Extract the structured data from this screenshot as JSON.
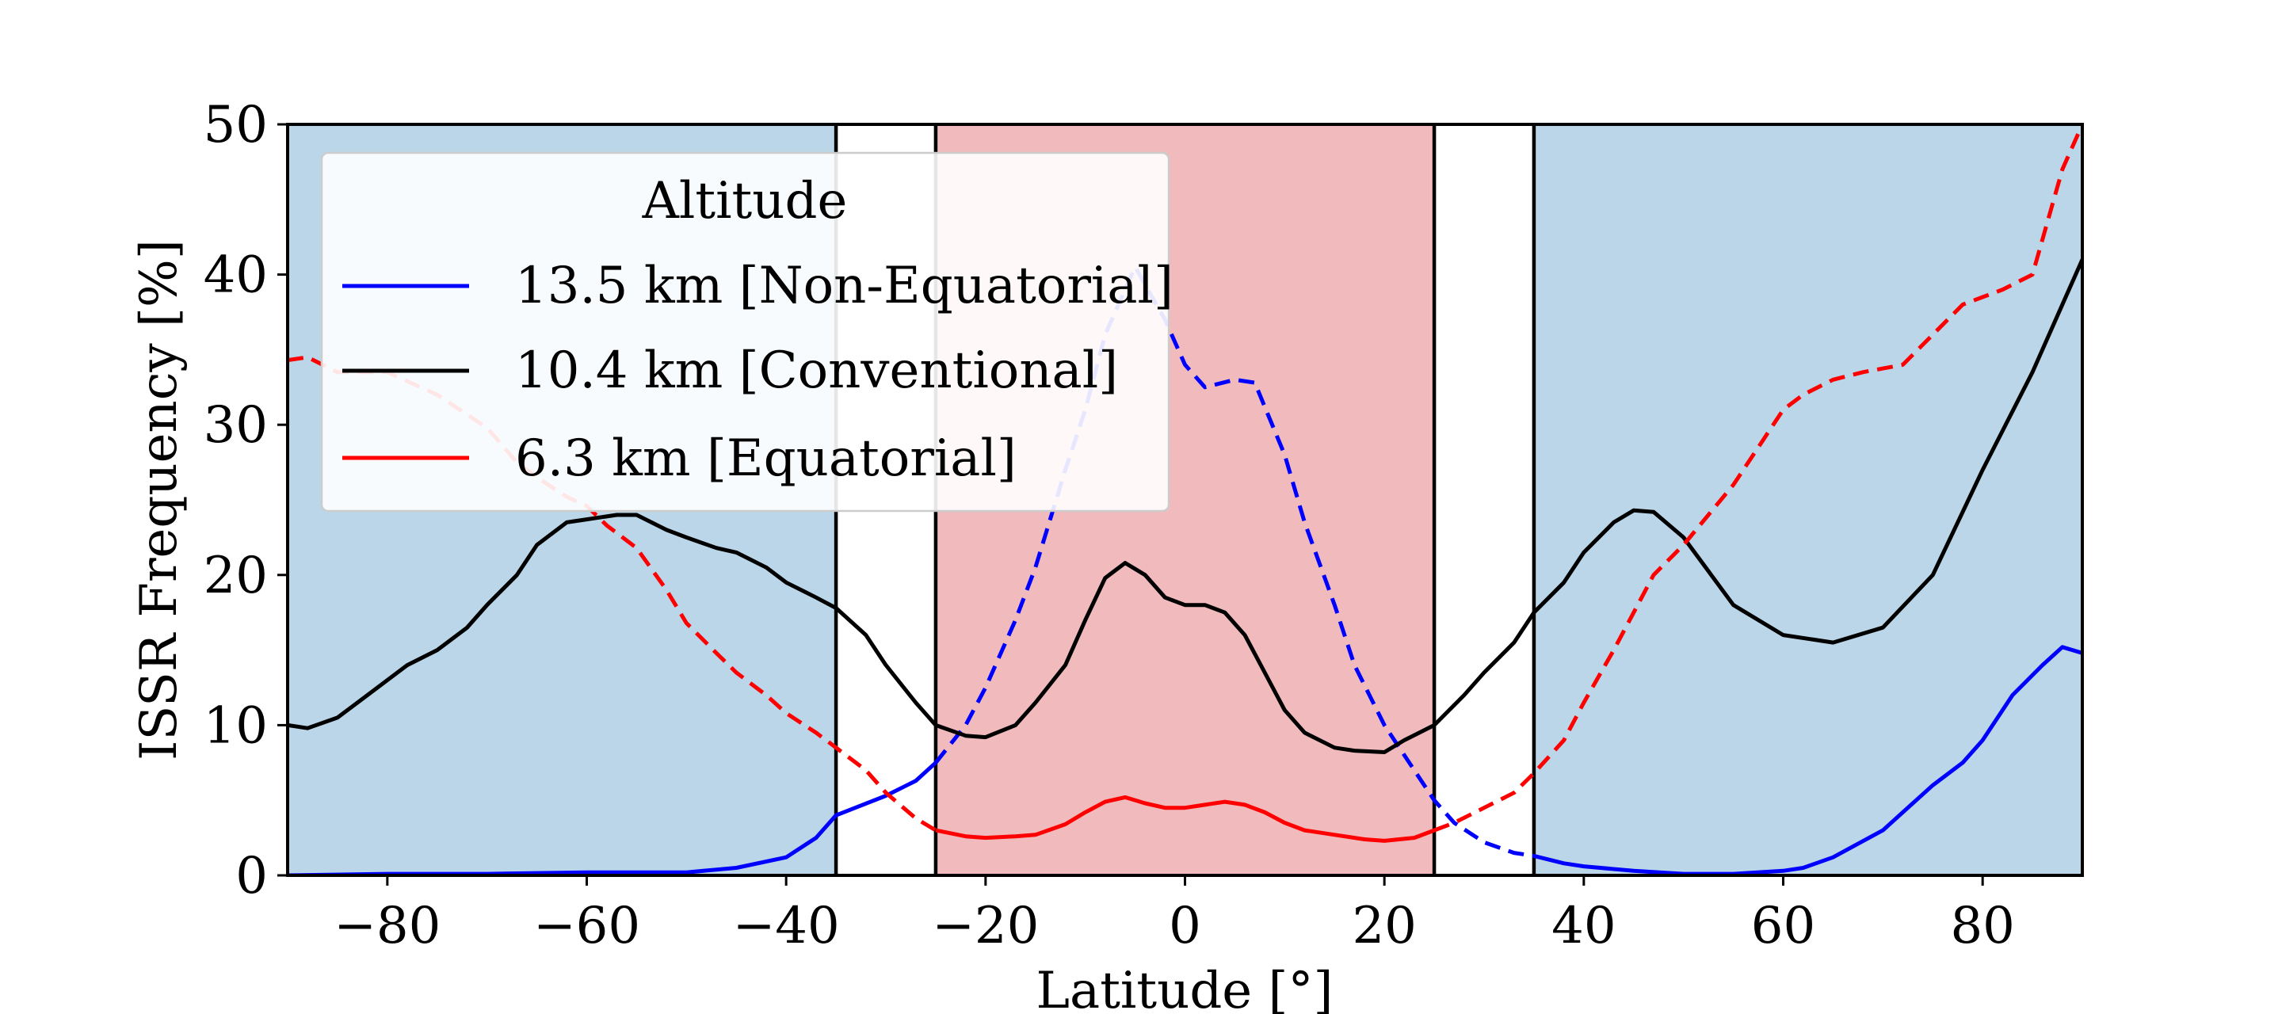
{
  "chart_data": {
    "type": "line",
    "title": "",
    "xlabel": "Latitude [°]",
    "ylabel": "ISSR Frequency [%]",
    "xlim": [
      -90,
      90
    ],
    "ylim": [
      0,
      50
    ],
    "xticks": [
      -80,
      -60,
      -40,
      -20,
      0,
      20,
      40,
      60,
      80
    ],
    "yticks": [
      0,
      10,
      20,
      30,
      40,
      50
    ],
    "grid": false,
    "legend": {
      "title": "Altitude",
      "position": "upper-left",
      "entries": [
        {
          "label": "13.5 km [Non-Equatorial]",
          "color": "#0000ff"
        },
        {
          "label": "10.4 km [Conventional]",
          "color": "#000000"
        },
        {
          "label": "6.3 km [Equatorial]",
          "color": "#ff0000"
        }
      ]
    },
    "regions": [
      {
        "x0": -90,
        "x1": -35,
        "color": "#bad6e8"
      },
      {
        "x0": -25,
        "x1": 25,
        "color": "#f1bbbd"
      },
      {
        "x0": 35,
        "x1": 90,
        "color": "#bad6e8"
      }
    ],
    "vlines": [
      -35,
      -25,
      25,
      35
    ],
    "series": [
      {
        "name": "13.5 km [Non-Equatorial]",
        "color": "#0000ff",
        "x": [
          -90,
          -80,
          -70,
          -60,
          -50,
          -45,
          -40,
          -37,
          -35,
          -30,
          -27,
          -25,
          -22,
          -20,
          -17,
          -15,
          -12,
          -10,
          -8,
          -5,
          -2,
          0,
          2,
          5,
          7,
          10,
          12,
          15,
          17,
          20,
          22,
          25,
          27,
          30,
          33,
          35,
          38,
          40,
          45,
          50,
          55,
          60,
          62,
          65,
          70,
          75,
          78,
          80,
          83,
          86,
          88,
          90
        ],
        "values": [
          0,
          0.1,
          0.1,
          0.2,
          0.2,
          0.5,
          1.2,
          2.5,
          4.0,
          5.3,
          6.3,
          7.5,
          10,
          12.5,
          17,
          20.5,
          27,
          31,
          36,
          40.5,
          37,
          34,
          32.5,
          33,
          32.8,
          28,
          23.5,
          18,
          14,
          10,
          8,
          5,
          3.5,
          2.2,
          1.5,
          1.3,
          0.8,
          0.6,
          0.3,
          0.1,
          0.1,
          0.3,
          0.5,
          1.2,
          3,
          6,
          7.5,
          9,
          12,
          14,
          15.2,
          14.8
        ],
        "segments": [
          {
            "style": "solid",
            "x0": -90,
            "x1": -25
          },
          {
            "style": "dashed",
            "x0": -25,
            "x1": 35
          },
          {
            "style": "solid",
            "x0": 35,
            "x1": 90
          }
        ]
      },
      {
        "name": "10.4 km [Conventional]",
        "color": "#000000",
        "x": [
          -90,
          -88,
          -85,
          -82,
          -78,
          -75,
          -72,
          -70,
          -67,
          -65,
          -62,
          -60,
          -57,
          -55,
          -52,
          -50,
          -47,
          -45,
          -42,
          -40,
          -37,
          -35,
          -32,
          -30,
          -27,
          -25,
          -22,
          -20,
          -17,
          -15,
          -12,
          -10,
          -8,
          -6,
          -4,
          -2,
          0,
          2,
          4,
          6,
          8,
          10,
          12,
          15,
          17,
          20,
          22,
          25,
          28,
          30,
          33,
          35,
          38,
          40,
          43,
          45,
          47,
          50,
          55,
          60,
          65,
          70,
          75,
          80,
          85,
          88,
          90
        ],
        "values": [
          10,
          9.8,
          10.5,
          12,
          14,
          15,
          16.5,
          18,
          20,
          22,
          23.5,
          23.7,
          24,
          24,
          23,
          22.5,
          21.8,
          21.5,
          20.5,
          19.5,
          18.5,
          17.8,
          16,
          14,
          11.5,
          10,
          9.3,
          9.2,
          10,
          11.5,
          14,
          17,
          19.8,
          20.8,
          20,
          18.5,
          18,
          18,
          17.5,
          16,
          13.5,
          11,
          9.5,
          8.5,
          8.3,
          8.2,
          9,
          10,
          12,
          13.5,
          15.5,
          17.5,
          19.5,
          21.5,
          23.5,
          24.3,
          24.2,
          22.5,
          18,
          16,
          15.5,
          16.5,
          20,
          27,
          33.5,
          38,
          41
        ],
        "segments": [
          {
            "style": "solid",
            "x0": -90,
            "x1": 90
          }
        ]
      },
      {
        "name": "6.3 km [Equatorial]",
        "color": "#ff0000",
        "x": [
          -90,
          -88,
          -85,
          -80,
          -75,
          -70,
          -67,
          -65,
          -62,
          -60,
          -58,
          -55,
          -52,
          -50,
          -47,
          -45,
          -42,
          -40,
          -37,
          -35,
          -32,
          -30,
          -27,
          -25,
          -22,
          -20,
          -17,
          -15,
          -12,
          -10,
          -8,
          -6,
          -4,
          -2,
          0,
          2,
          4,
          6,
          8,
          10,
          12,
          15,
          18,
          20,
          23,
          25,
          27,
          30,
          33,
          35,
          38,
          40,
          43,
          45,
          47,
          50,
          55,
          58,
          60,
          62,
          65,
          68,
          72,
          75,
          78,
          80,
          82,
          85,
          88,
          90
        ],
        "values": [
          34.3,
          34.5,
          33.5,
          33.5,
          32,
          29.8,
          27.5,
          26.5,
          25.2,
          24.6,
          23.3,
          21.8,
          19,
          16.8,
          14.8,
          13.5,
          12,
          10.8,
          9.5,
          8.5,
          7,
          5.5,
          3.8,
          3,
          2.6,
          2.5,
          2.6,
          2.7,
          3.4,
          4.2,
          4.9,
          5.2,
          4.8,
          4.5,
          4.5,
          4.7,
          4.9,
          4.7,
          4.2,
          3.5,
          3,
          2.7,
          2.4,
          2.3,
          2.5,
          3,
          3.5,
          4.5,
          5.5,
          6.8,
          9,
          11.5,
          15,
          17.5,
          20,
          22,
          26,
          29,
          31,
          32,
          33,
          33.5,
          34,
          36,
          38,
          38.5,
          39,
          40,
          47,
          50
        ],
        "segments": [
          {
            "style": "dashed",
            "x0": -90,
            "x1": -25
          },
          {
            "style": "solid",
            "x0": -25,
            "x1": 25
          },
          {
            "style": "dashed",
            "x0": 25,
            "x1": 90
          }
        ]
      }
    ]
  }
}
